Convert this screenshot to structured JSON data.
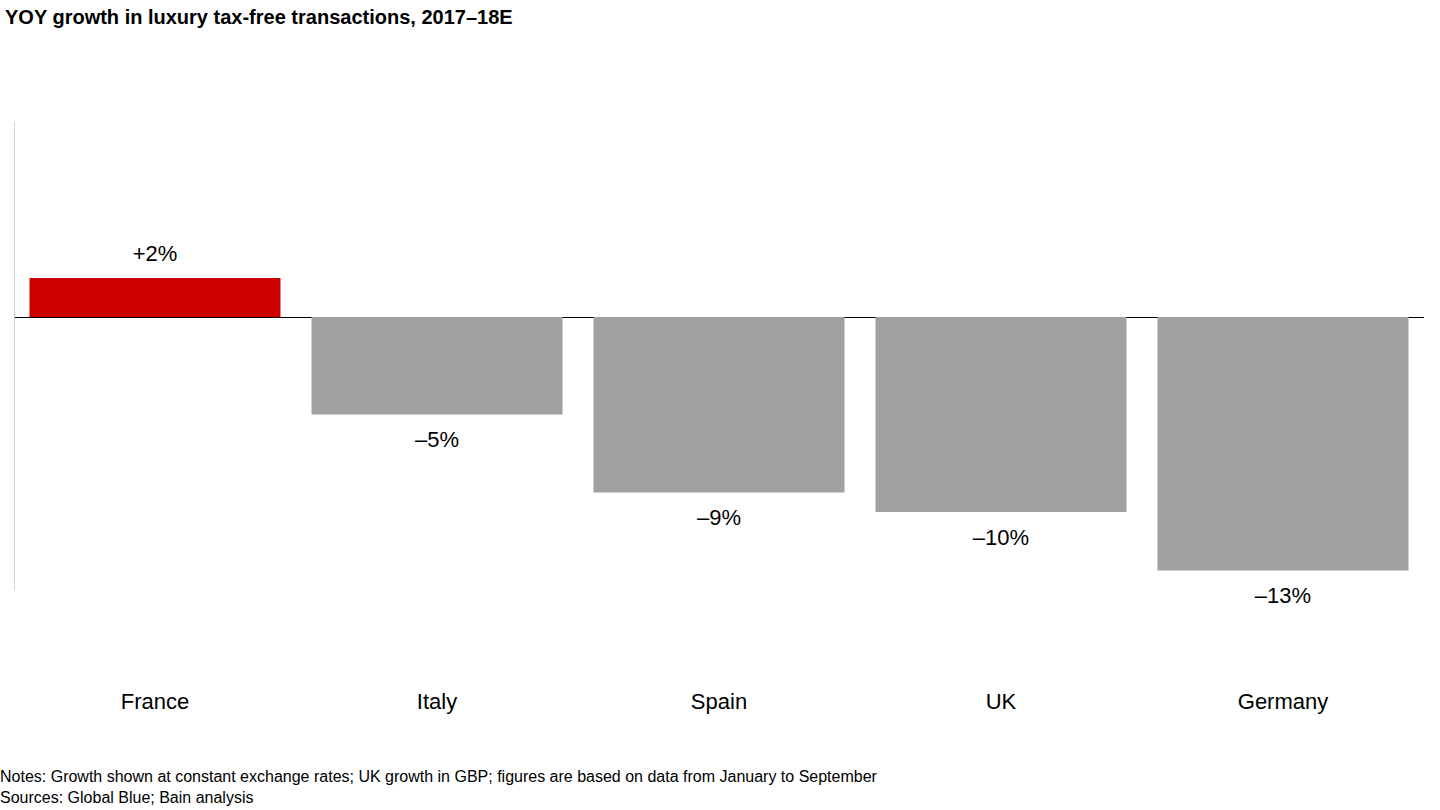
{
  "chart_data": {
    "type": "bar",
    "title": "YOY growth in luxury tax-free transactions, 2017–18E",
    "categories": [
      "France",
      "Italy",
      "Spain",
      "UK",
      "Germany"
    ],
    "values": [
      2,
      -5,
      -9,
      -10,
      -13
    ],
    "value_labels": [
      "+2%",
      "–5%",
      "–9%",
      "–10%",
      "–13%"
    ],
    "colors": [
      "#cc0000",
      "#a0a0a0",
      "#a0a0a0",
      "#a0a0a0",
      "#a0a0a0"
    ],
    "ylim": [
      -14,
      10
    ],
    "yticks": [
      0
    ],
    "grid": true,
    "data_labels": true,
    "tick_labels": "x",
    "notes": "Notes: Growth shown at constant exchange rates; UK growth in GBP; figures are based on data from January to September",
    "sources": "Sources: Global Blue; Bain analysis"
  }
}
